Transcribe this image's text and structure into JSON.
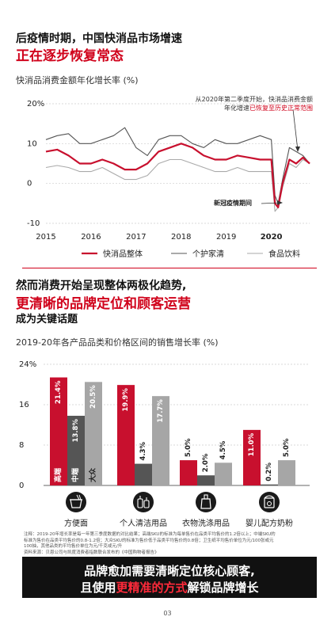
{
  "header": {
    "line1": "后疫情时期，中国快消品市场增速",
    "line2": "正在逐步恢复常态",
    "chart1_title": "快消品消费金额年化增长率 (%)"
  },
  "section2": {
    "line1": "然而消费开始呈现整体两极化趋势,",
    "line2": "更清晰的品牌定位和顾客运营",
    "line3": "成为关键话题",
    "chart2_title": "2019-20年各产品品类和价格区间的销售增长率 (%)"
  },
  "chart_data": [
    {
      "type": "line",
      "x_ticks": [
        "2015",
        "2016",
        "2017",
        "2018",
        "2019",
        "2020"
      ],
      "y_ticks": [
        "20%",
        "10",
        "0",
        "-10"
      ],
      "ylim": [
        -10,
        20
      ],
      "legend_position": "bottom",
      "annotations": {
        "top_line1": "从2020年第二季度开始，快消品消费金额",
        "top_line2_pre": "年化增速",
        "top_line2_hl": "已恢复至历史正常范围",
        "low": "新冠疫情期间"
      },
      "series": [
        {
          "name": "快消品整体",
          "color": "#c8102e",
          "x": [
            2015.0,
            2015.25,
            2015.5,
            2015.75,
            2016.0,
            2016.25,
            2016.5,
            2016.75,
            2017.0,
            2017.25,
            2017.5,
            2017.75,
            2018.0,
            2018.25,
            2018.5,
            2018.75,
            2019.0,
            2019.25,
            2019.5,
            2019.75,
            2020.0,
            2020.08,
            2020.15,
            2020.25,
            2020.4,
            2020.55,
            2020.7,
            2020.85
          ],
          "y": [
            8,
            8.5,
            7,
            5,
            5,
            6,
            5,
            3.5,
            3.5,
            5,
            8,
            9,
            10,
            9,
            7,
            6,
            6,
            7,
            6.5,
            6,
            6,
            -5,
            -6,
            0,
            6,
            5,
            6.5,
            5
          ]
        },
        {
          "name": "个护家清",
          "color": "#555555",
          "x": [
            2015.0,
            2015.25,
            2015.5,
            2015.75,
            2016.0,
            2016.25,
            2016.5,
            2016.75,
            2017.0,
            2017.25,
            2017.5,
            2017.75,
            2018.0,
            2018.25,
            2018.5,
            2018.75,
            2019.0,
            2019.25,
            2019.5,
            2019.75,
            2020.0,
            2020.08,
            2020.15,
            2020.25,
            2020.4,
            2020.55,
            2020.7,
            2020.85
          ],
          "y": [
            11,
            12,
            12.5,
            10,
            10,
            11,
            12,
            14,
            9,
            7,
            11,
            12,
            12,
            10,
            9,
            11,
            10,
            10,
            11,
            12,
            11,
            -3,
            -5,
            1,
            9,
            8,
            7,
            5
          ]
        },
        {
          "name": "食品饮料",
          "color": "#aaaaaa",
          "x": [
            2015.0,
            2015.25,
            2015.5,
            2015.75,
            2016.0,
            2016.25,
            2016.5,
            2016.75,
            2017.0,
            2017.25,
            2017.5,
            2017.75,
            2018.0,
            2018.25,
            2018.5,
            2018.75,
            2019.0,
            2019.25,
            2019.5,
            2019.75,
            2020.0,
            2020.08,
            2020.15,
            2020.25,
            2020.4,
            2020.55,
            2020.7,
            2020.85
          ],
          "y": [
            4,
            4.5,
            4,
            3,
            3,
            4,
            2.5,
            1,
            1,
            2,
            5,
            6,
            6,
            5,
            4,
            3,
            3,
            4,
            3,
            3,
            3,
            -7,
            -6,
            -1,
            5,
            4,
            6,
            5
          ]
        }
      ]
    },
    {
      "type": "bar",
      "y_ticks": [
        "24%",
        "16",
        "8",
        "0"
      ],
      "ylim": [
        0,
        24
      ],
      "categories": [
        "方便面",
        "个人清洁用品",
        "衣物洗涤用品",
        "婴儿配方奶粉"
      ],
      "series": [
        {
          "name": "高端",
          "color": "#c8102e",
          "values": [
            21.4,
            19.9,
            5.0,
            11.0
          ],
          "labels": [
            "21.4%",
            "19.9%",
            "5.0%",
            "11.0%"
          ]
        },
        {
          "name": "中端",
          "color": "#555555",
          "values": [
            13.8,
            4.3,
            2.0,
            0.2
          ],
          "labels": [
            "13.8%",
            "4.3%",
            "2.0%",
            "0.2%"
          ]
        },
        {
          "name": "大众",
          "color": "#a6a6a6",
          "values": [
            20.5,
            17.7,
            4.5,
            5.0
          ],
          "labels": [
            "20.5%",
            "17.7%",
            "4.5%",
            "5.0%"
          ]
        }
      ],
      "bar_inside_labels": [
        "高端",
        "中端",
        "大众"
      ],
      "category_icons": [
        "noodle-cup-icon",
        "personal-care-bottles-icon",
        "detergent-bottle-icon",
        "baby-formula-can-icon"
      ]
    }
  ],
  "notes": {
    "line1": "注释：2019-20年增长率是每一年第三季度数据的对比结果；高端SKU的标准为每单售价在品类平均售价的1.2倍以上；中端SKU的",
    "line2": "标准为售价在品类平均售价的0.8-1.2倍；大众SKU的标准为售价低于品类平均售价的0.8倍；卫生纸平均售价单位为元/100张或元",
    "line3": "100抽，其他品类的平均售价单位为元/千克或元/升",
    "line4": "资料来源：贝恩公司与凯度消费者指数联合发布的《中国购物者报告》"
  },
  "banner": {
    "line1": "品牌愈加需要清晰定位核心顾客,",
    "line2_a": "且使用",
    "line2_hl": "更精准的方式",
    "line2_b": "解锁品牌增长"
  },
  "page_number": "03"
}
